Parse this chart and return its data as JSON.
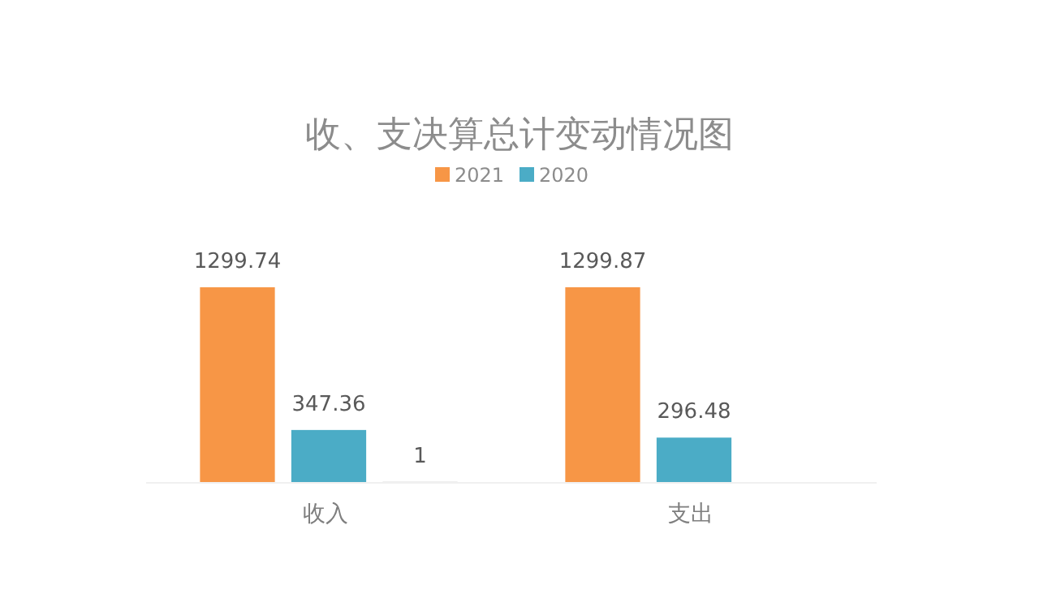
{
  "chart_data": {
    "type": "bar",
    "title": "收、支决算总计变动情况图",
    "categories": [
      "收入",
      "支出"
    ],
    "series": [
      {
        "name": "2021",
        "color": "#f79646",
        "values": [
          1299.74,
          1299.87
        ]
      },
      {
        "name": "2020",
        "color": "#4bacc6",
        "values": [
          347.36,
          296.48
        ]
      },
      {
        "color": "#a5a5a5",
        "values": [
          1,
          null
        ]
      }
    ],
    "data_labels": true,
    "legend": "top"
  }
}
